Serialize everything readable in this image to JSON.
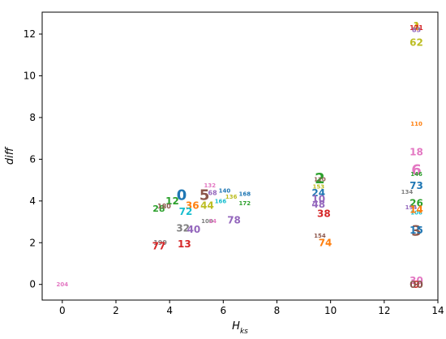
{
  "chart_data": {
    "type": "scatter",
    "title": "",
    "xlabel": "H",
    "xlabel_sub": "ks",
    "ylabel": "diff",
    "xlim": [
      -0.75,
      14.0
    ],
    "ylim": [
      -0.75,
      13.05
    ],
    "xticks": [
      "0",
      "2",
      "4",
      "6",
      "8",
      "10",
      "12",
      "14"
    ],
    "yticks": [
      "0",
      "2",
      "4",
      "6",
      "8",
      "10",
      "12"
    ],
    "grid": false,
    "marker": "text-label",
    "points": [
      {
        "label": "204",
        "x": 0.0,
        "y": 0.0,
        "color": "#e377c2",
        "size": 7
      },
      {
        "label": "12",
        "x": 4.1,
        "y": 4.0,
        "color": "#2ca02c",
        "size": 12
      },
      {
        "label": "0",
        "x": 4.45,
        "y": 4.3,
        "color": "#1f77b4",
        "size": 18
      },
      {
        "label": "28",
        "x": 3.6,
        "y": 3.65,
        "color": "#2ca02c",
        "size": 11
      },
      {
        "label": "180",
        "x": 3.8,
        "y": 3.75,
        "color": "#8c564b",
        "size": 8
      },
      {
        "label": "36",
        "x": 4.85,
        "y": 3.8,
        "color": "#ff7f0e",
        "size": 12
      },
      {
        "label": "72",
        "x": 4.6,
        "y": 3.5,
        "color": "#17becf",
        "size": 12
      },
      {
        "label": "5",
        "x": 5.3,
        "y": 4.3,
        "color": "#8c564b",
        "size": 18
      },
      {
        "label": "132",
        "x": 5.5,
        "y": 4.75,
        "color": "#e377c2",
        "size": 7
      },
      {
        "label": "140",
        "x": 6.05,
        "y": 4.5,
        "color": "#1f77b4",
        "size": 7
      },
      {
        "label": "168",
        "x": 6.8,
        "y": 4.35,
        "color": "#1f77b4",
        "size": 7
      },
      {
        "label": "136",
        "x": 6.3,
        "y": 4.2,
        "color": "#bcbd22",
        "size": 7
      },
      {
        "label": "166",
        "x": 5.9,
        "y": 4.0,
        "color": "#17becf",
        "size": 7
      },
      {
        "label": "172",
        "x": 6.8,
        "y": 3.9,
        "color": "#2ca02c",
        "size": 7
      },
      {
        "label": "44",
        "x": 5.4,
        "y": 3.8,
        "color": "#bcbd22",
        "size": 12
      },
      {
        "label": "68",
        "x": 5.6,
        "y": 4.4,
        "color": "#9467bd",
        "size": 8
      },
      {
        "label": "32",
        "x": 4.5,
        "y": 2.7,
        "color": "#7f7f7f",
        "size": 12
      },
      {
        "label": "40",
        "x": 4.9,
        "y": 2.65,
        "color": "#9467bd",
        "size": 12
      },
      {
        "label": "78",
        "x": 6.4,
        "y": 3.1,
        "color": "#9467bd",
        "size": 12
      },
      {
        "label": "100",
        "x": 5.4,
        "y": 3.05,
        "color": "#7f7f7f",
        "size": 7
      },
      {
        "label": "14",
        "x": 5.6,
        "y": 3.05,
        "color": "#e377c2",
        "size": 7
      },
      {
        "label": "199",
        "x": 3.65,
        "y": 2.0,
        "color": "#7f7f7f",
        "size": 8
      },
      {
        "label": "77",
        "x": 3.6,
        "y": 1.85,
        "color": "#d62728",
        "size": 12
      },
      {
        "label": "13",
        "x": 4.55,
        "y": 1.95,
        "color": "#d62728",
        "size": 12
      },
      {
        "label": "2",
        "x": 9.6,
        "y": 5.1,
        "color": "#2ca02c",
        "size": 18
      },
      {
        "label": "120",
        "x": 9.6,
        "y": 5.05,
        "color": "#8c564b",
        "size": 7
      },
      {
        "label": "153",
        "x": 9.55,
        "y": 4.7,
        "color": "#bcbd22",
        "size": 7
      },
      {
        "label": "24",
        "x": 9.55,
        "y": 4.4,
        "color": "#1f77b4",
        "size": 12
      },
      {
        "label": "10",
        "x": 9.55,
        "y": 4.1,
        "color": "#9467bd",
        "size": 12
      },
      {
        "label": "48",
        "x": 9.55,
        "y": 3.85,
        "color": "#9467bd",
        "size": 12
      },
      {
        "label": "38",
        "x": 9.75,
        "y": 3.4,
        "color": "#d62728",
        "size": 12
      },
      {
        "label": "154",
        "x": 9.6,
        "y": 2.35,
        "color": "#8c564b",
        "size": 7
      },
      {
        "label": "74",
        "x": 9.8,
        "y": 2.0,
        "color": "#ff7f0e",
        "size": 12
      },
      {
        "label": "4",
        "x": 13.2,
        "y": 12.35,
        "color": "#ff7f0e",
        "size": 12
      },
      {
        "label": "1",
        "x": 13.2,
        "y": 12.4,
        "color": "#bcbd22",
        "size": 12
      },
      {
        "label": "171",
        "x": 13.2,
        "y": 12.3,
        "color": "#d62728",
        "size": 8
      },
      {
        "label": "83",
        "x": 13.2,
        "y": 12.2,
        "color": "#9467bd",
        "size": 8
      },
      {
        "label": "62",
        "x": 13.2,
        "y": 11.6,
        "color": "#bcbd22",
        "size": 12
      },
      {
        "label": "110",
        "x": 13.2,
        "y": 7.7,
        "color": "#ff7f0e",
        "size": 7
      },
      {
        "label": "18",
        "x": 13.2,
        "y": 6.35,
        "color": "#e377c2",
        "size": 12
      },
      {
        "label": "6",
        "x": 13.2,
        "y": 5.5,
        "color": "#e377c2",
        "size": 18
      },
      {
        "label": "146",
        "x": 13.2,
        "y": 5.3,
        "color": "#2ca02c",
        "size": 7
      },
      {
        "label": "73",
        "x": 13.2,
        "y": 4.75,
        "color": "#1f77b4",
        "size": 12
      },
      {
        "label": "134",
        "x": 12.85,
        "y": 4.45,
        "color": "#7f7f7f",
        "size": 7
      },
      {
        "label": "26",
        "x": 13.2,
        "y": 3.9,
        "color": "#2ca02c",
        "size": 12
      },
      {
        "label": "194",
        "x": 13.0,
        "y": 3.7,
        "color": "#9467bd",
        "size": 7
      },
      {
        "label": "106",
        "x": 13.2,
        "y": 3.45,
        "color": "#17becf",
        "size": 7
      },
      {
        "label": "14b",
        "x": 13.2,
        "y": 3.6,
        "color": "#ff7f0e",
        "size": 12
      },
      {
        "label": "3",
        "x": 13.2,
        "y": 2.6,
        "color": "#8c564b",
        "size": 18
      },
      {
        "label": "15",
        "x": 13.2,
        "y": 2.6,
        "color": "#1f77b4",
        "size": 12
      },
      {
        "label": "30",
        "x": 13.2,
        "y": 0.2,
        "color": "#e377c2",
        "size": 12
      },
      {
        "label": "9",
        "x": 13.2,
        "y": 0.0,
        "color": "#d62728",
        "size": 12
      },
      {
        "label": "00",
        "x": 13.2,
        "y": 0.0,
        "color": "#8c564b",
        "size": 12
      }
    ]
  }
}
